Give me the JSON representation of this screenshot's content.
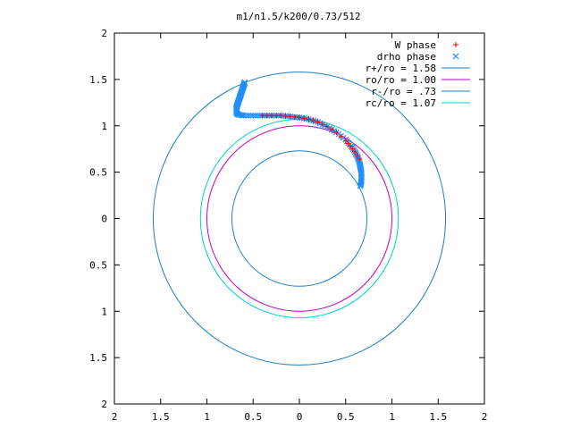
{
  "chart_data": {
    "type": "scatter",
    "title": "m1/n1.5/k200/0.73/512",
    "xlim": [
      -2,
      2
    ],
    "ylim": [
      -2,
      2
    ],
    "x_ticks": [
      "2",
      "1.5",
      "1",
      "0.5",
      "0",
      "0.5",
      "1",
      "1.5",
      "2"
    ],
    "y_ticks": [
      "2",
      "1.5",
      "1",
      "0.5",
      "0",
      "0.5",
      "1",
      "1.5",
      "2"
    ],
    "grid": false,
    "legend_position": "top-right",
    "legend": [
      {
        "label": "W phase",
        "marker": "+",
        "color": "#ff0000"
      },
      {
        "label": "drho phase",
        "marker": "x",
        "color": "#1f8fff"
      },
      {
        "label": "r+/ro = 1.58",
        "marker": "line",
        "color": "#1a7fc4"
      },
      {
        "label": "ro/ro = 1.00",
        "marker": "line",
        "color": "#c000c0"
      },
      {
        "label": "r-/ro = .73",
        "marker": "line",
        "color": "#1a7fc4"
      },
      {
        "label": "rc/ro = 1.07",
        "marker": "line",
        "color": "#00d0d0"
      }
    ],
    "circles": [
      {
        "name": "r+/ro",
        "radius": 1.58,
        "color": "#1a7fc4"
      },
      {
        "name": "ro/ro",
        "radius": 1.0,
        "color": "#c000c0"
      },
      {
        "name": "r-/ro",
        "radius": 0.73,
        "color": "#1a7fc4"
      },
      {
        "name": "rc/ro",
        "radius": 1.07,
        "color": "#00d0d0"
      }
    ],
    "series": [
      {
        "name": "W phase",
        "marker": "+",
        "color": "#ff0000",
        "points": [
          [
            -0.4,
            1.11
          ],
          [
            -0.3,
            1.11
          ],
          [
            -0.2,
            1.11
          ],
          [
            -0.1,
            1.1
          ],
          [
            0.0,
            1.09
          ],
          [
            0.1,
            1.07
          ],
          [
            0.2,
            1.04
          ],
          [
            0.3,
            0.99
          ],
          [
            0.4,
            0.93
          ],
          [
            0.5,
            0.84
          ],
          [
            0.55,
            0.78
          ],
          [
            0.6,
            0.72
          ],
          [
            0.65,
            0.64
          ]
        ]
      },
      {
        "name": "drho phase",
        "marker": "x",
        "color": "#1f8fff",
        "points": [
          [
            -0.59,
            1.47
          ],
          [
            -0.6,
            1.44
          ],
          [
            -0.61,
            1.41
          ],
          [
            -0.62,
            1.38
          ],
          [
            -0.63,
            1.35
          ],
          [
            -0.64,
            1.32
          ],
          [
            -0.65,
            1.29
          ],
          [
            -0.66,
            1.26
          ],
          [
            -0.67,
            1.23
          ],
          [
            -0.68,
            1.2
          ],
          [
            -0.68,
            1.17
          ],
          [
            -0.68,
            1.14
          ],
          [
            -0.66,
            1.12
          ],
          [
            -0.6,
            1.11
          ],
          [
            -0.5,
            1.11
          ],
          [
            -0.4,
            1.11
          ],
          [
            -0.3,
            1.11
          ],
          [
            -0.2,
            1.11
          ],
          [
            -0.1,
            1.1
          ],
          [
            0.0,
            1.09
          ],
          [
            0.1,
            1.07
          ],
          [
            0.2,
            1.04
          ],
          [
            0.3,
            0.99
          ],
          [
            0.4,
            0.93
          ],
          [
            0.5,
            0.85
          ],
          [
            0.56,
            0.78
          ],
          [
            0.6,
            0.72
          ],
          [
            0.63,
            0.66
          ],
          [
            0.65,
            0.6
          ],
          [
            0.66,
            0.55
          ],
          [
            0.67,
            0.5
          ],
          [
            0.67,
            0.45
          ],
          [
            0.67,
            0.4
          ],
          [
            0.66,
            0.35
          ]
        ]
      }
    ]
  }
}
